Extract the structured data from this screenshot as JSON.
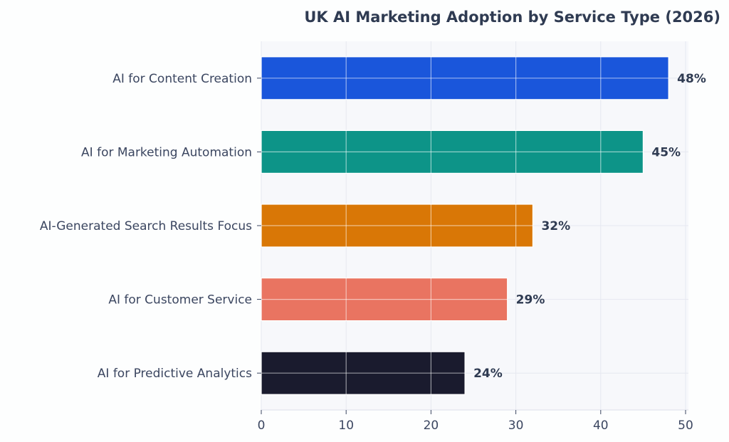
{
  "chart_data": {
    "type": "bar",
    "orientation": "horizontal",
    "title": "UK AI Marketing Adoption by Service Type (2026)",
    "xlabel": "",
    "ylabel": "",
    "categories": [
      "AI for Content Creation",
      "AI for Marketing Automation",
      "AI-Generated Search Results Focus",
      "AI for Customer Service",
      "AI for Predictive Analytics"
    ],
    "values": [
      48,
      45,
      32,
      29,
      24
    ],
    "value_labels": [
      "48%",
      "45%",
      "32%",
      "29%",
      "24%"
    ],
    "colors": [
      "#1a56db",
      "#0d9488",
      "#d97706",
      "#e97461",
      "#1a1b2e"
    ],
    "xlim": [
      0,
      50
    ],
    "xticks": [
      0,
      10,
      20,
      30,
      40,
      50
    ],
    "xtick_labels": [
      "0",
      "10",
      "20",
      "30",
      "40",
      "50"
    ],
    "grid": true,
    "background": "#f7f8fb"
  }
}
